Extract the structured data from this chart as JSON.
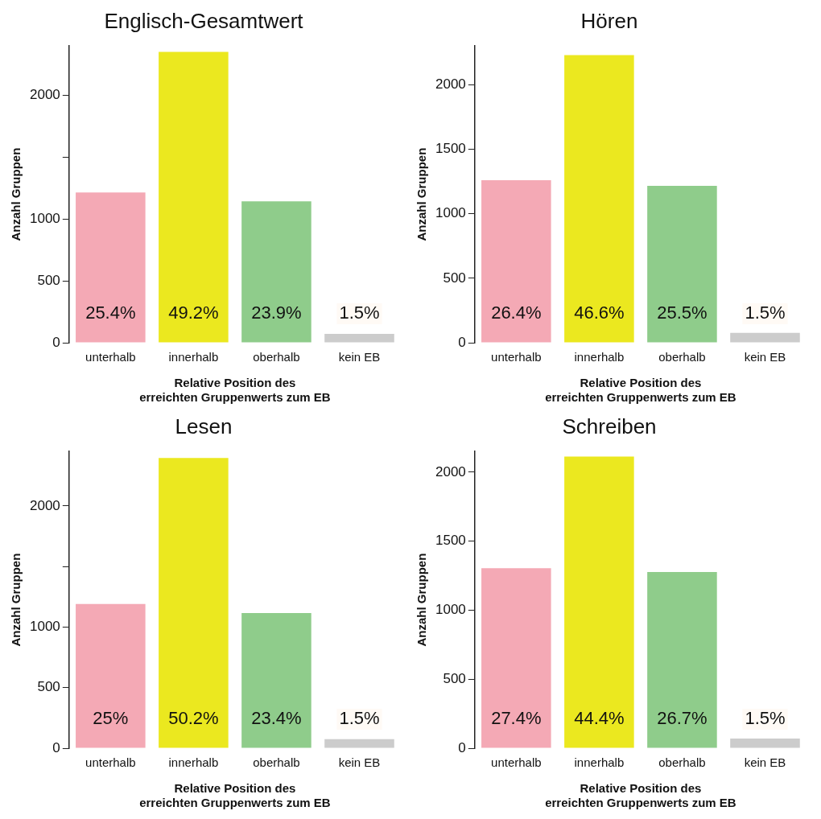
{
  "chart_data": [
    {
      "type": "bar",
      "title": "Englisch-Gesamtwert",
      "xlabel": "Relative Position des erreichten Gruppenwerts zum EB",
      "ylabel": "Anzahl Gruppen",
      "categories": [
        "unterhalb",
        "innerhalb",
        "oberhalb",
        "kein EB"
      ],
      "values": [
        1216,
        2353,
        1144,
        72
      ],
      "colors": [
        "#f4a9b5",
        "#ebe81f",
        "#8fcc8b",
        "#cccccc"
      ],
      "annotations": [
        "25.4%",
        "49.2%",
        "23.9%",
        "1.5%"
      ],
      "ylim": [
        0,
        2400
      ],
      "yticks": [
        0,
        500,
        1000,
        {
          "value": 1500,
          "label": null
        },
        2000
      ]
    },
    {
      "type": "bar",
      "title": "Hören",
      "xlabel": "Relative Position des erreichten Gruppenwerts zum EB",
      "ylabel": "Anzahl Gruppen",
      "categories": [
        "unterhalb",
        "innerhalb",
        "oberhalb",
        "kein EB"
      ],
      "values": [
        1260,
        2230,
        1216,
        76
      ],
      "colors": [
        "#f4a9b5",
        "#ebe81f",
        "#8fcc8b",
        "#cccccc"
      ],
      "annotations": [
        "26.4%",
        "46.6%",
        "25.5%",
        "1.5%"
      ],
      "ylim": [
        0,
        2300
      ],
      "yticks": [
        0,
        500,
        1000,
        1500,
        2000
      ]
    },
    {
      "type": "bar",
      "title": "Lesen",
      "xlabel": "Relative Position des erreichten Gruppenwerts zum EB",
      "ylabel": "Anzahl Gruppen",
      "categories": [
        "unterhalb",
        "innerhalb",
        "oberhalb",
        "kein EB"
      ],
      "values": [
        1190,
        2396,
        1116,
        74
      ],
      "colors": [
        "#f4a9b5",
        "#ebe81f",
        "#8fcc8b",
        "#cccccc"
      ],
      "annotations": [
        "25%",
        "50.2%",
        "23.4%",
        "1.5%"
      ],
      "ylim": [
        0,
        2450
      ],
      "yticks": [
        0,
        500,
        1000,
        {
          "value": 1500,
          "label": null
        },
        2000
      ]
    },
    {
      "type": "bar",
      "title": "Schreiben",
      "xlabel": "Relative Position des erreichten Gruppenwerts zum EB",
      "ylabel": "Anzahl Gruppen",
      "categories": [
        "unterhalb",
        "innerhalb",
        "oberhalb",
        "kein EB"
      ],
      "values": [
        1304,
        2114,
        1276,
        70
      ],
      "colors": [
        "#f4a9b5",
        "#ebe81f",
        "#8fcc8b",
        "#cccccc"
      ],
      "annotations": [
        "27.4%",
        "44.4%",
        "26.7%",
        "1.5%"
      ],
      "ylim": [
        0,
        2150
      ],
      "yticks": [
        0,
        500,
        1000,
        1500,
        2000
      ]
    }
  ]
}
